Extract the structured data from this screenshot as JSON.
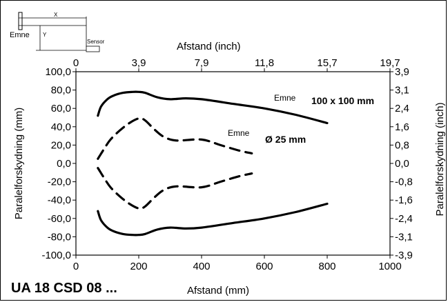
{
  "chart_data": {
    "type": "line",
    "title": "",
    "footer_label": "UA 18 CSD 08 ...",
    "xlabel_bottom": "Afstand (mm)",
    "xlabel_top": "Afstand (inch)",
    "ylabel_left": "Paralelforskydning (mm)",
    "ylabel_right": "Paralelforskydning (inch)",
    "xlim": [
      0,
      1000
    ],
    "ylim": [
      -100,
      100
    ],
    "x_ticks": [
      "0",
      "200",
      "400",
      "600",
      "800",
      "1000"
    ],
    "x_top_ticks": [
      "0",
      "3,9",
      "7,9",
      "11,8",
      "15,7",
      "19,7"
    ],
    "y_ticks": [
      "100,0",
      "80,0",
      "60,0",
      "40,0",
      "20,0",
      "0,0",
      "-20,0",
      "-40,0",
      "-60,0",
      "-80,0",
      "-100,0"
    ],
    "y_right_ticks": [
      "3,9",
      "3,1",
      "2,4",
      "1,6",
      "0,8",
      "0,0",
      "-0,8",
      "-1,6",
      "-2,4",
      "-3,1",
      "-3,9"
    ],
    "grid": false,
    "series": [
      {
        "name": "Emne 100 x 100 mm",
        "label_word": "Emne",
        "label_size": "100 x 100 mm",
        "style": "solid",
        "x": [
          70,
          80,
          100,
          120,
          150,
          180,
          200,
          220,
          260,
          300,
          350,
          400,
          500,
          600,
          700,
          800
        ],
        "y_upper": [
          52,
          62,
          70,
          74,
          77,
          78,
          78,
          77,
          72,
          70,
          71,
          70,
          65,
          60,
          53,
          44
        ],
        "y_lower": [
          -52,
          -62,
          -70,
          -74,
          -77,
          -78,
          -78,
          -77,
          -72,
          -70,
          -71,
          -70,
          -65,
          -60,
          -53,
          -44
        ]
      },
      {
        "name": "Emne Ø 25 mm",
        "label_word": "Emne",
        "label_size": "Ø 25 mm",
        "style": "dashed",
        "x": [
          70,
          90,
          110,
          140,
          170,
          200,
          220,
          250,
          280,
          320,
          400,
          460,
          520,
          560
        ],
        "y_upper": [
          5,
          16,
          26,
          36,
          44,
          49,
          47,
          37,
          29,
          25,
          26,
          20,
          14,
          11
        ],
        "y_lower": [
          -5,
          -16,
          -26,
          -36,
          -44,
          -49,
          -47,
          -37,
          -29,
          -25,
          -26,
          -20,
          -14,
          -11
        ]
      }
    ],
    "inset": {
      "target_label": "Emne",
      "sensor_label": "Sensor",
      "x_label": "X",
      "y_label": "Y"
    }
  }
}
